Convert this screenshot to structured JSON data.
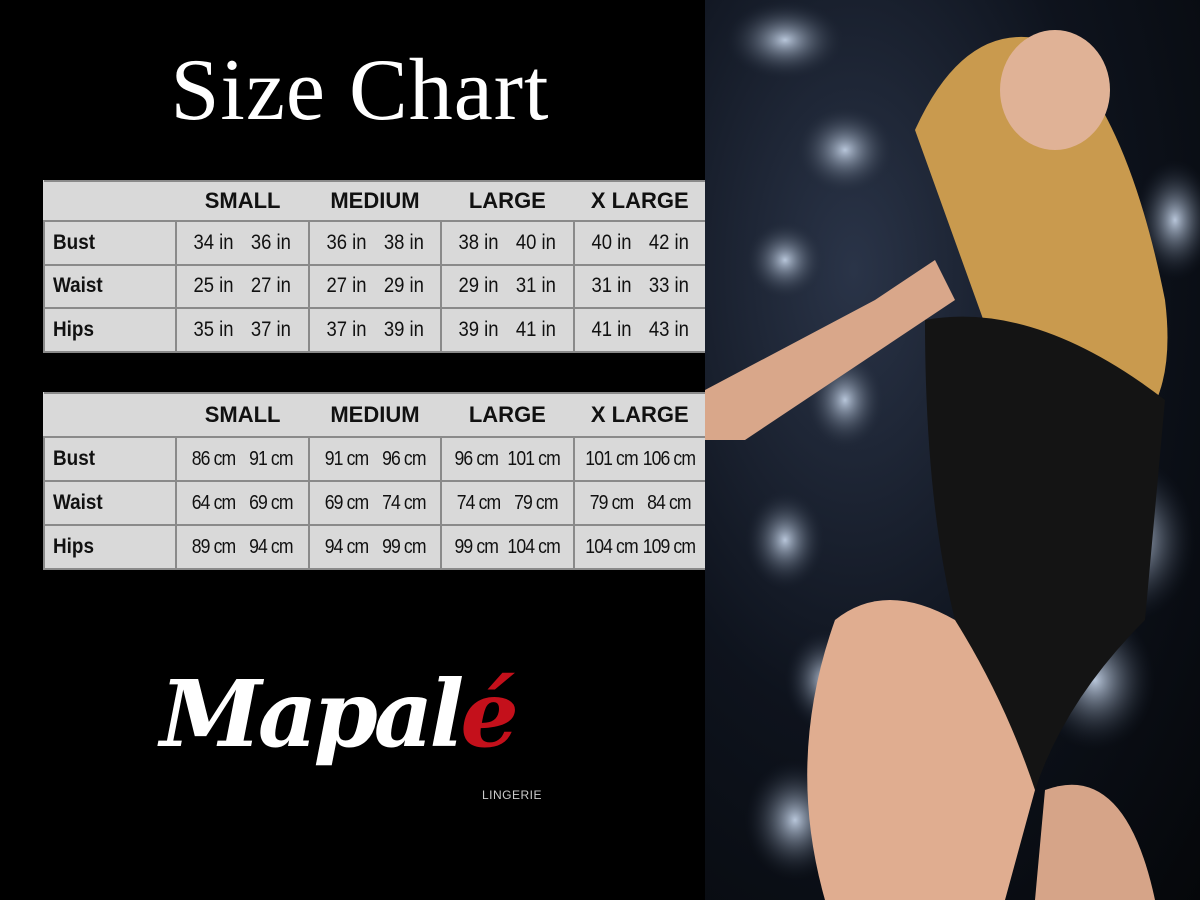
{
  "title": "Size Chart",
  "sizes": [
    "SMALL",
    "MEDIUM",
    "LARGE",
    "X LARGE"
  ],
  "tables": [
    {
      "rows": [
        {
          "label": "Bust",
          "values": [
            [
              "34 in",
              "36 in"
            ],
            [
              "36 in",
              "38 in"
            ],
            [
              "38 in",
              "40 in"
            ],
            [
              "40 in",
              "42 in"
            ]
          ]
        },
        {
          "label": "Waist",
          "values": [
            [
              "25 in",
              "27 in"
            ],
            [
              "27 in",
              "29 in"
            ],
            [
              "29 in",
              "31 in"
            ],
            [
              "31 in",
              "33 in"
            ]
          ]
        },
        {
          "label": "Hips",
          "values": [
            [
              "35 in",
              "37 in"
            ],
            [
              "37 in",
              "39 in"
            ],
            [
              "39 in",
              "41 in"
            ],
            [
              "41 in",
              "43 in"
            ]
          ]
        }
      ]
    },
    {
      "rows": [
        {
          "label": "Bust",
          "values": [
            [
              "86 cm",
              "91 cm"
            ],
            [
              "91 cm",
              "96 cm"
            ],
            [
              "96 cm",
              "101 cm"
            ],
            [
              "101 cm",
              "106 cm"
            ]
          ]
        },
        {
          "label": "Waist",
          "values": [
            [
              "64 cm",
              "69 cm"
            ],
            [
              "69 cm",
              "74 cm"
            ],
            [
              "74 cm",
              "79 cm"
            ],
            [
              "79 cm",
              "84 cm"
            ]
          ]
        },
        {
          "label": "Hips",
          "values": [
            [
              "89 cm",
              "94 cm"
            ],
            [
              "94 cm",
              "99 cm"
            ],
            [
              "99 cm",
              "104 cm"
            ],
            [
              "104 cm",
              "109 cm"
            ]
          ]
        }
      ]
    }
  ],
  "logo": {
    "text_main": "Mapal",
    "text_accent": "é",
    "subtitle": "LINGERIE",
    "accent_color": "#c4101b"
  }
}
